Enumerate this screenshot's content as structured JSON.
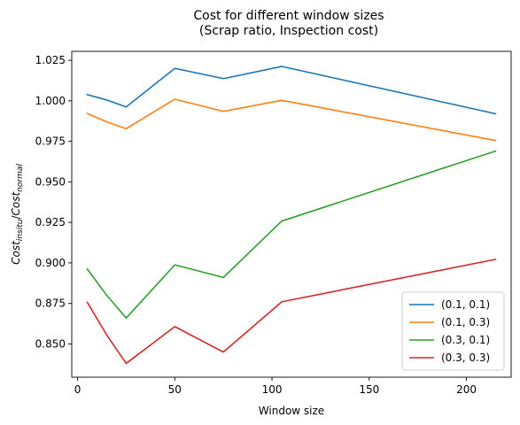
{
  "chart_data": {
    "type": "line",
    "title_line1": "Cost for different window sizes",
    "title_line2": "(Scrap ratio, Inspection cost)",
    "xlabel": "Window size",
    "ylabel": {
      "base1": "Cost",
      "sub1": "insitu",
      "sep": "/",
      "base2": "Cost",
      "sub2": "normal"
    },
    "xlim": [
      -3,
      223
    ],
    "ylim": [
      0.8295,
      1.0305
    ],
    "xticks": [
      0,
      50,
      100,
      150,
      200
    ],
    "xtick_labels": [
      "0",
      "50",
      "100",
      "150",
      "200"
    ],
    "yticks": [
      0.85,
      0.875,
      0.9,
      0.925,
      0.95,
      0.975,
      1.0,
      1.025
    ],
    "ytick_labels": [
      "0.850",
      "0.875",
      "0.900",
      "0.925",
      "0.950",
      "0.975",
      "1.000",
      "1.025"
    ],
    "grid": false,
    "legend_position": "lower right",
    "x": [
      5,
      15,
      25,
      50,
      75,
      105,
      215
    ],
    "series": [
      {
        "name": "(0.1, 0.1)",
        "color": "#1f77b4",
        "values": [
          1.0038,
          1.0005,
          0.9962,
          1.02,
          1.0137,
          1.0212,
          0.992
        ]
      },
      {
        "name": "(0.1, 0.3)",
        "color": "#ff7f0e",
        "values": [
          0.9922,
          0.987,
          0.9828,
          1.001,
          0.9935,
          1.0003,
          0.9755
        ]
      },
      {
        "name": "(0.3, 0.1)",
        "color": "#2ca02c",
        "values": [
          0.8962,
          0.88,
          0.866,
          0.8988,
          0.891,
          0.9258,
          0.969
        ]
      },
      {
        "name": "(0.3, 0.3)",
        "color": "#d62728",
        "values": [
          0.8757,
          0.8555,
          0.838,
          0.8607,
          0.845,
          0.876,
          0.9022
        ]
      }
    ]
  }
}
